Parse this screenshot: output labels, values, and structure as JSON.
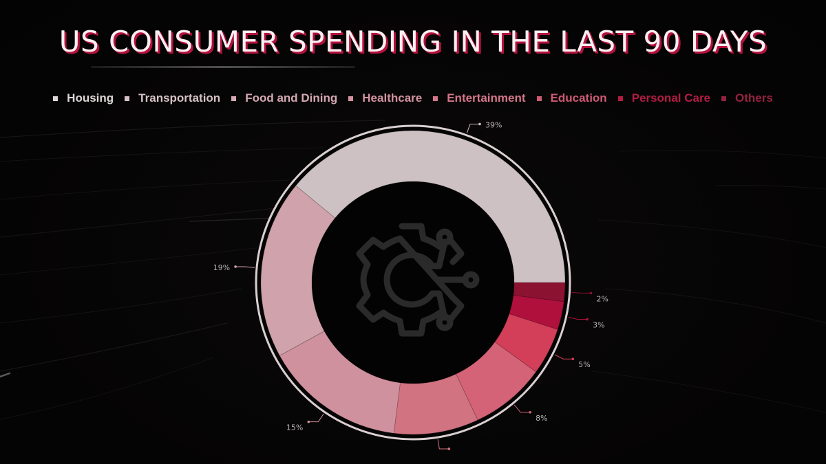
{
  "title": "US CONSUMER SPENDING IN THE LAST 90 DAYS",
  "chart_data": {
    "type": "pie",
    "variant": "donut",
    "title": "US CONSUMER SPENDING IN THE LAST 90 DAYS",
    "legend_position": "top",
    "categories": [
      "Housing",
      "Transportation",
      "Food and Dining",
      "Healthcare",
      "Entertainment",
      "Education",
      "Personal Care",
      "Others"
    ],
    "values": [
      39,
      19,
      15,
      9,
      8,
      5,
      3,
      2
    ],
    "value_labels": [
      "39%",
      "19%",
      "15%",
      "",
      "8%",
      "5%",
      "3%",
      "2%"
    ],
    "colors": [
      "#cdc1c3",
      "#d0a2ab",
      "#d0919f",
      "#d27382",
      "#d56377",
      "#d33e59",
      "#b0103c",
      "#8c1232"
    ],
    "legend_text_colors": [
      "#ddd6d7",
      "#d6c2c6",
      "#d5a9b3",
      "#d493a2",
      "#d5768a",
      "#cf5a74",
      "#b21c44",
      "#94223f"
    ]
  },
  "center_icon": "gear-circuit-icon"
}
